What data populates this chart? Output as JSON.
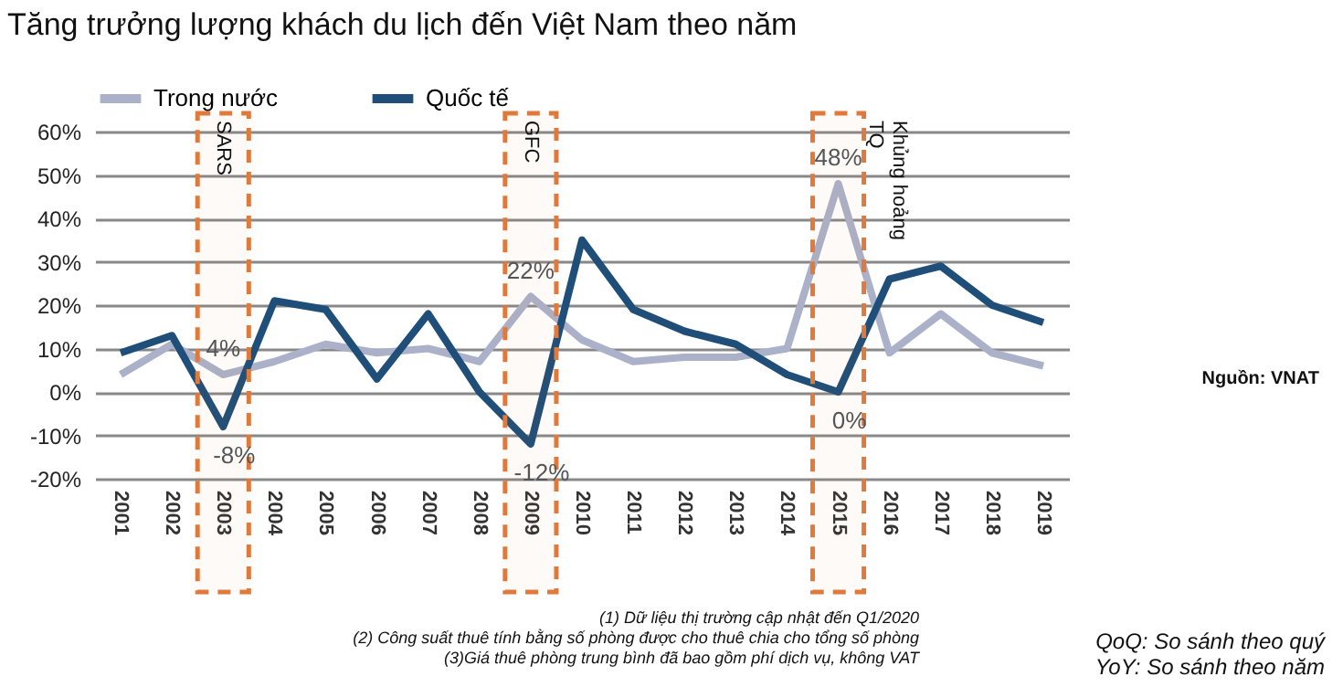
{
  "chart_data": {
    "type": "line",
    "title": "Tăng trưởng lượng khách du lịch đến Việt Nam theo năm",
    "categories": [
      "2001",
      "2002",
      "2003",
      "2004",
      "2005",
      "2006",
      "2007",
      "2008",
      "2009",
      "2010",
      "2011",
      "2012",
      "2013",
      "2014",
      "2015",
      "2016",
      "2017",
      "2018",
      "2019"
    ],
    "series": [
      {
        "name": "Trong nước",
        "color": "#aab1c9",
        "values": [
          4,
          11,
          4,
          7,
          11,
          9,
          10,
          7,
          22,
          12,
          7,
          8,
          8,
          10,
          48,
          9,
          18,
          9,
          6
        ],
        "value_labels": [
          null,
          null,
          "4%",
          null,
          null,
          null,
          null,
          null,
          "22%",
          null,
          null,
          null,
          null,
          null,
          "48%",
          null,
          null,
          null,
          null
        ]
      },
      {
        "name": "Quốc tế",
        "color": "#1f4e79",
        "values": [
          9,
          13,
          -8,
          21,
          19,
          3,
          18,
          0,
          -12,
          35,
          19,
          14,
          11,
          4,
          0,
          26,
          29,
          20,
          16
        ],
        "value_labels": [
          null,
          null,
          "-8%",
          null,
          null,
          null,
          null,
          null,
          "-12%",
          null,
          null,
          null,
          null,
          null,
          "0%",
          null,
          null,
          null,
          null
        ]
      }
    ],
    "ylim": [
      -20,
      60
    ],
    "yticks": [
      {
        "value": -20,
        "label": "-20%"
      },
      {
        "value": -10,
        "label": "-10%"
      },
      {
        "value": 0,
        "label": "0%"
      },
      {
        "value": 10,
        "label": "10%"
      },
      {
        "value": 20,
        "label": "20%"
      },
      {
        "value": 30,
        "label": "30%"
      },
      {
        "value": 40,
        "label": "40%"
      },
      {
        "value": 50,
        "label": "50%"
      },
      {
        "value": 60,
        "label": "60%"
      }
    ],
    "grid": "y",
    "legend": "top",
    "marker": "none",
    "line_style": "solid",
    "bands": [
      {
        "axis": "x",
        "from": "2003",
        "to": "2003",
        "label": "SARS",
        "color": "#e07a3c"
      },
      {
        "axis": "x",
        "from": "2009",
        "to": "2009",
        "label": "GFC",
        "color": "#e07a3c"
      },
      {
        "axis": "x",
        "from": "2015",
        "to": "2015",
        "label": "Khủng hoảng TQ",
        "color": "#e07a3c"
      }
    ],
    "annotations": [
      "Nguồn: VNAT",
      "(1) Dữ liệu thị trường cập nhật đến Q1/2020",
      "(2) Công suất thuê tính bằng số phòng được cho thuê chia cho tổng số phòng",
      "(3)Giá thuê phòng trung bình đã bao gồm phí dịch vụ, không VAT",
      "QoQ: So sánh theo quý",
      "YoY: So sánh theo năm"
    ]
  }
}
